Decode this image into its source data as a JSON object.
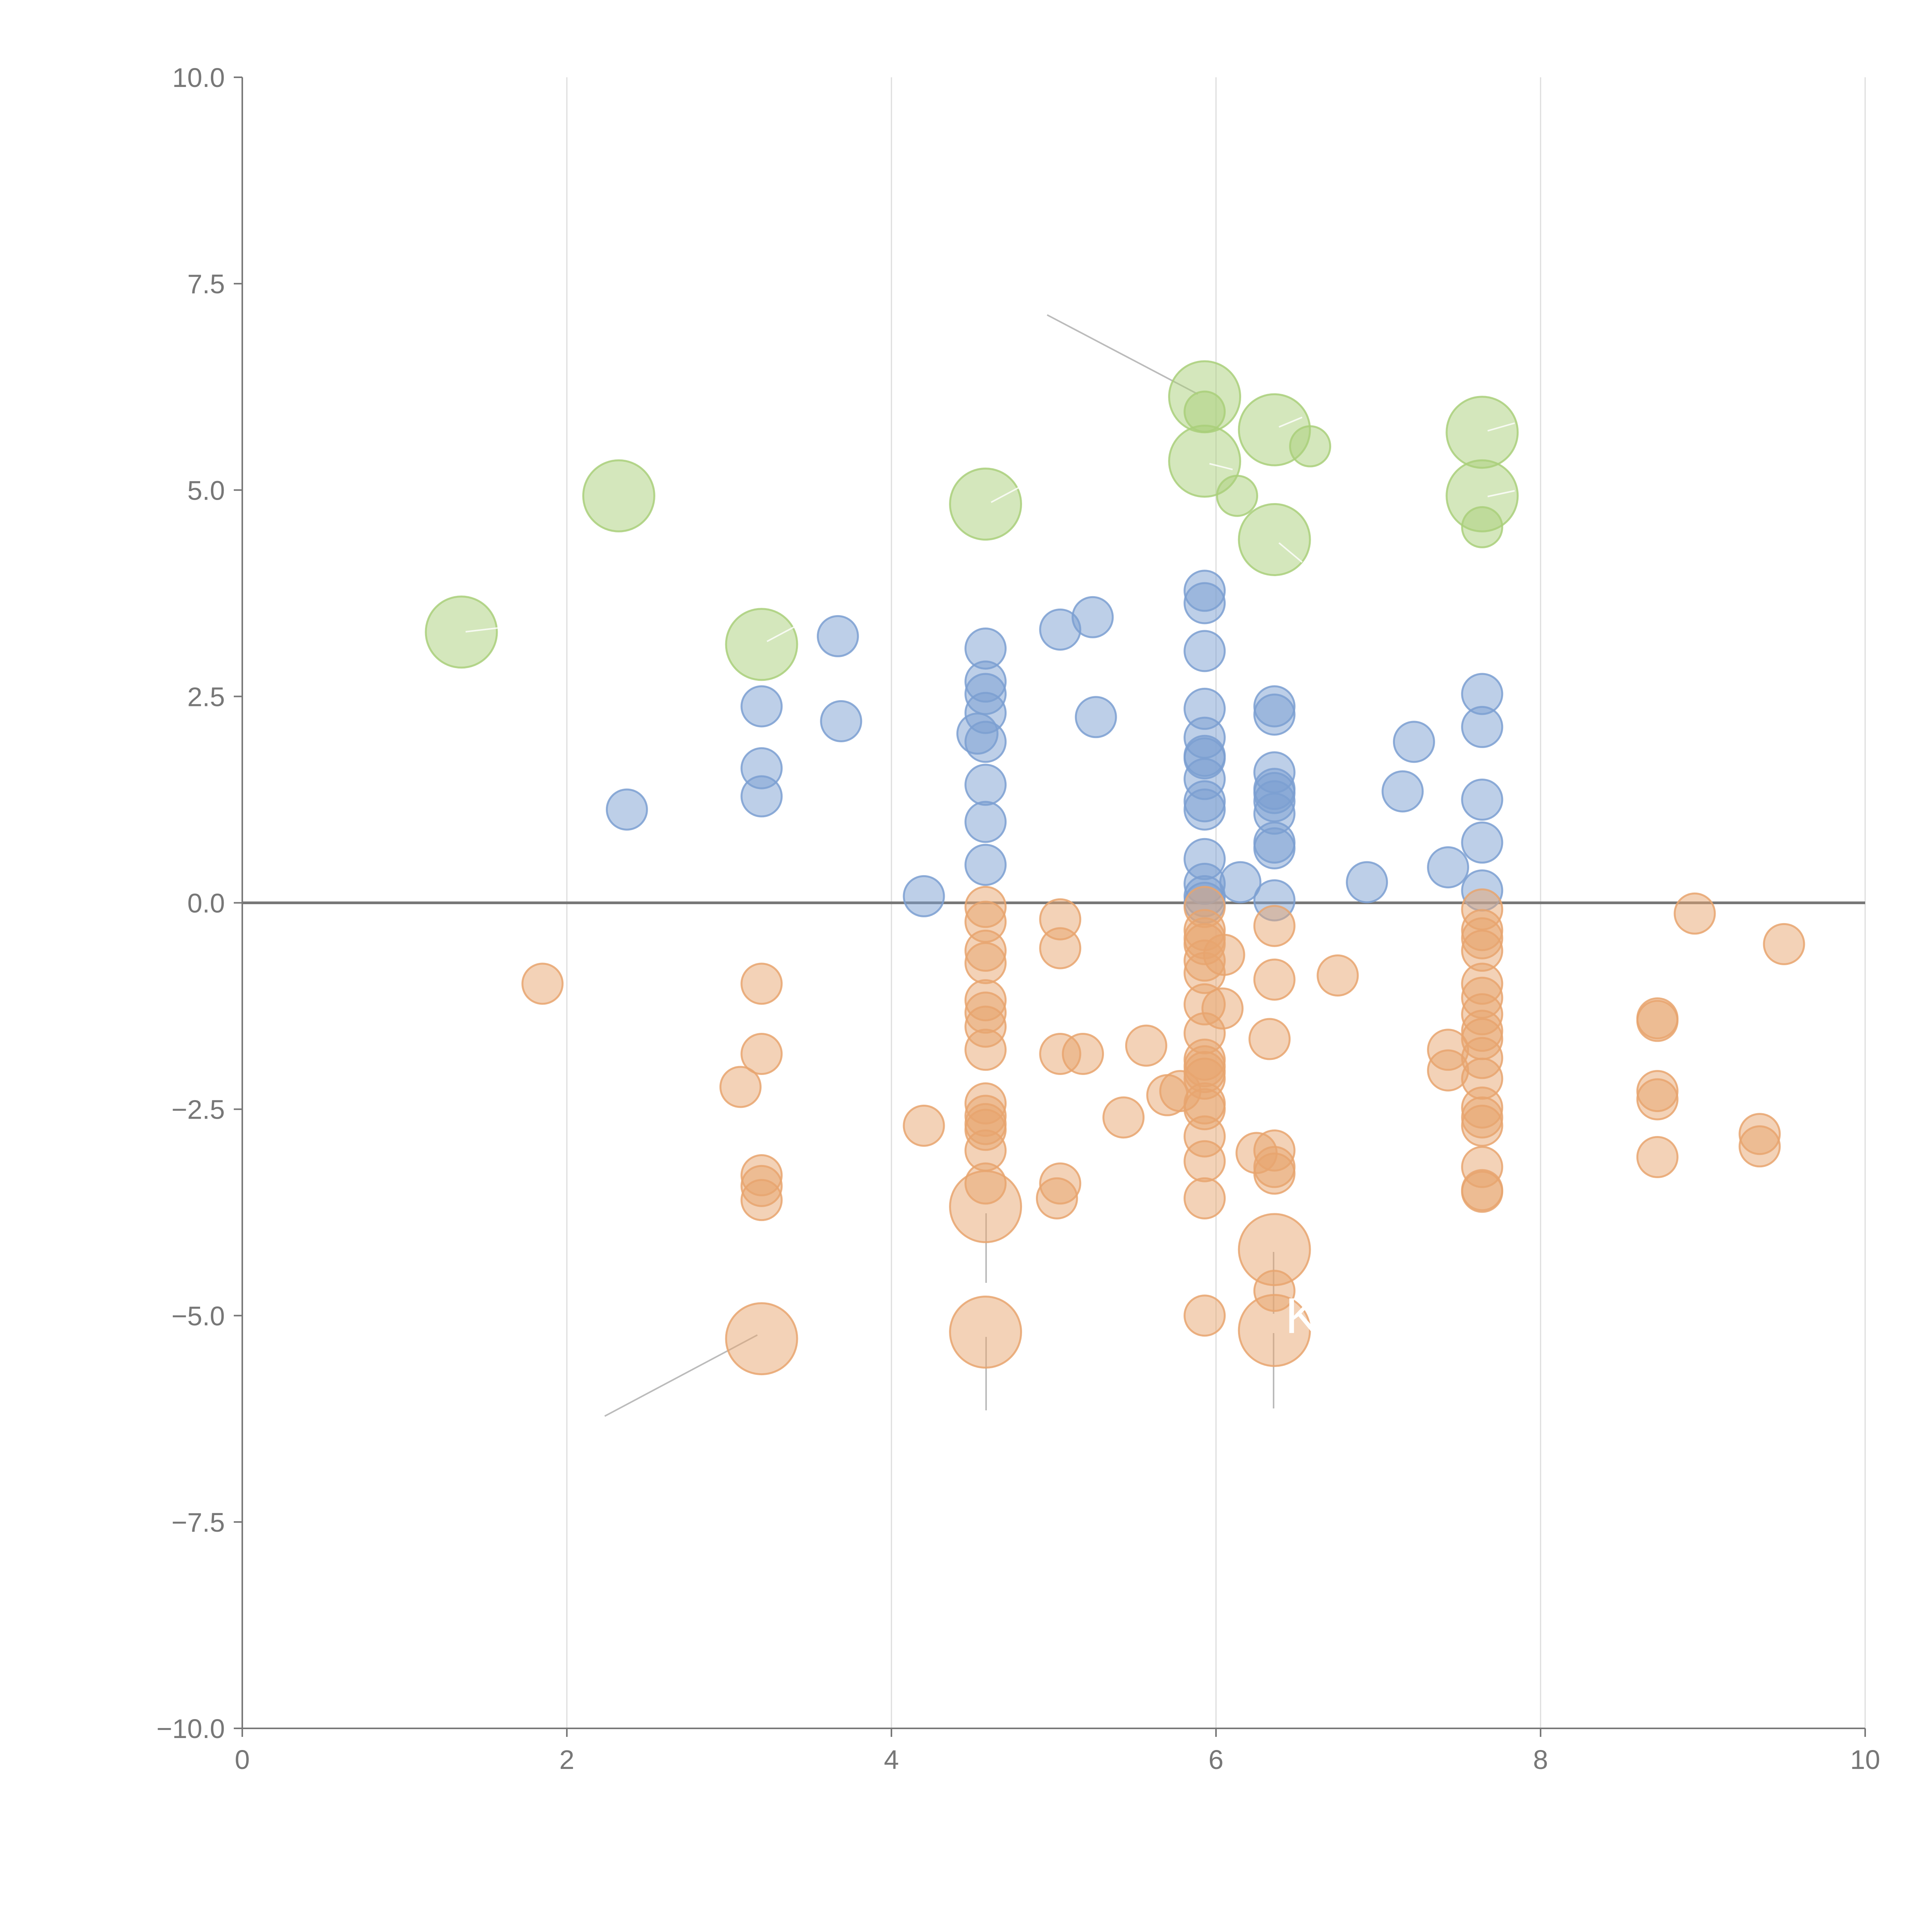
{
  "chart_data": {
    "type": "scatter",
    "title": "",
    "xlabel": "",
    "ylabel": "",
    "xlim": [
      0,
      10
    ],
    "ylim": [
      -10,
      10
    ],
    "xticks": [
      "0",
      "2",
      "4",
      "6",
      "8",
      "10"
    ],
    "yticks": [
      "10.0",
      "7.5",
      "5.0",
      "2.5",
      "0.0",
      "−2.5",
      "−5.0",
      "−7.5",
      "−10.0"
    ],
    "xtick_values": [
      0,
      2,
      4,
      6,
      8,
      10
    ],
    "ytick_values": [
      10,
      7.5,
      5,
      2.5,
      0,
      -2.5,
      -5,
      -7.5,
      -10
    ],
    "grid": "vertical",
    "reference_line_y": 0,
    "colors": {
      "blue": "#7b9fd1",
      "orange": "#e8a56f",
      "green": "#a9cf7a"
    },
    "annotations": [
      {
        "text": "K",
        "x": 6.45,
        "y": -5.0
      }
    ],
    "series": [
      {
        "color": "#7b9fd1",
        "size": "small",
        "points": [
          [
            2.37,
            1.13
          ],
          [
            3.2,
            2.38
          ],
          [
            3.2,
            1.63
          ],
          [
            3.2,
            1.29
          ],
          [
            3.67,
            3.23
          ],
          [
            3.69,
            2.2
          ],
          [
            4.2,
            0.08
          ],
          [
            4.53,
            2.05
          ],
          [
            4.58,
            3.08
          ],
          [
            4.58,
            2.68
          ],
          [
            4.58,
            2.53
          ],
          [
            4.58,
            2.3
          ],
          [
            4.58,
            1.95
          ],
          [
            4.58,
            1.43
          ],
          [
            4.58,
            0.98
          ],
          [
            4.58,
            0.46
          ],
          [
            5.04,
            3.31
          ],
          [
            5.24,
            3.46
          ],
          [
            5.26,
            2.25
          ],
          [
            5.93,
            3.78
          ],
          [
            5.93,
            3.63
          ],
          [
            5.93,
            3.05
          ],
          [
            5.93,
            2.35
          ],
          [
            5.93,
            2.0
          ],
          [
            5.93,
            1.78
          ],
          [
            5.93,
            1.75
          ],
          [
            5.93,
            1.5
          ],
          [
            5.93,
            1.23
          ],
          [
            5.93,
            1.13
          ],
          [
            5.93,
            0.53
          ],
          [
            5.93,
            0.23
          ],
          [
            5.93,
            0.08
          ],
          [
            5.93,
            0.0
          ],
          [
            6.15,
            0.25
          ],
          [
            6.36,
            2.38
          ],
          [
            6.36,
            2.28
          ],
          [
            6.36,
            1.58
          ],
          [
            6.36,
            1.38
          ],
          [
            6.36,
            1.33
          ],
          [
            6.36,
            1.23
          ],
          [
            6.36,
            1.08
          ],
          [
            6.36,
            0.73
          ],
          [
            6.36,
            0.66
          ],
          [
            6.36,
            0.03
          ],
          [
            6.93,
            0.25
          ],
          [
            7.15,
            1.35
          ],
          [
            7.22,
            1.95
          ],
          [
            7.43,
            0.43
          ],
          [
            7.64,
            2.53
          ],
          [
            7.64,
            2.13
          ],
          [
            7.64,
            1.25
          ],
          [
            7.64,
            0.73
          ],
          [
            7.64,
            0.15
          ]
        ]
      },
      {
        "color": "#e8a56f",
        "size": "small",
        "points": [
          [
            1.85,
            -0.98
          ],
          [
            3.07,
            -2.23
          ],
          [
            3.2,
            -0.98
          ],
          [
            3.2,
            -1.83
          ],
          [
            3.2,
            -3.3
          ],
          [
            3.2,
            -3.43
          ],
          [
            3.2,
            -3.6
          ],
          [
            4.2,
            -2.7
          ],
          [
            4.58,
            -0.05
          ],
          [
            4.58,
            -0.23
          ],
          [
            4.58,
            -0.58
          ],
          [
            4.58,
            -0.73
          ],
          [
            4.58,
            -1.18
          ],
          [
            4.58,
            -1.33
          ],
          [
            4.58,
            -1.5
          ],
          [
            4.58,
            -1.78
          ],
          [
            4.58,
            -2.43
          ],
          [
            4.58,
            -2.58
          ],
          [
            4.58,
            -2.68
          ],
          [
            4.58,
            -2.75
          ],
          [
            4.58,
            -3.0
          ],
          [
            4.58,
            -3.4
          ],
          [
            5.04,
            -0.2
          ],
          [
            5.04,
            -0.55
          ],
          [
            5.04,
            -1.83
          ],
          [
            5.18,
            -1.83
          ],
          [
            5.04,
            -3.4
          ],
          [
            5.02,
            -3.58
          ],
          [
            5.43,
            -2.6
          ],
          [
            5.57,
            -1.73
          ],
          [
            5.7,
            -2.33
          ],
          [
            5.78,
            -2.28
          ],
          [
            5.93,
            -0.05
          ],
          [
            5.93,
            -0.33
          ],
          [
            5.93,
            -0.43
          ],
          [
            5.93,
            -0.5
          ],
          [
            5.93,
            -0.7
          ],
          [
            5.93,
            -0.85
          ],
          [
            5.93,
            -1.23
          ],
          [
            5.93,
            -1.58
          ],
          [
            5.93,
            -1.9
          ],
          [
            5.93,
            -1.98
          ],
          [
            5.93,
            -2.05
          ],
          [
            5.93,
            -2.13
          ],
          [
            5.93,
            -2.43
          ],
          [
            5.93,
            -2.5
          ],
          [
            5.93,
            -2.83
          ],
          [
            5.93,
            -3.13
          ],
          [
            5.93,
            -3.58
          ],
          [
            5.93,
            -5.0
          ],
          [
            6.05,
            -0.63
          ],
          [
            6.04,
            -1.28
          ],
          [
            6.25,
            -3.03
          ],
          [
            6.33,
            -1.65
          ],
          [
            6.36,
            -0.28
          ],
          [
            6.36,
            -0.93
          ],
          [
            6.36,
            -3.0
          ],
          [
            6.36,
            -3.2
          ],
          [
            6.36,
            -3.28
          ],
          [
            6.36,
            -4.7
          ],
          [
            6.75,
            -0.88
          ],
          [
            7.43,
            -1.78
          ],
          [
            7.43,
            -2.03
          ],
          [
            7.64,
            -0.08
          ],
          [
            7.64,
            -0.33
          ],
          [
            7.64,
            -0.43
          ],
          [
            7.64,
            -0.58
          ],
          [
            7.64,
            -0.98
          ],
          [
            7.64,
            -1.15
          ],
          [
            7.64,
            -1.35
          ],
          [
            7.64,
            -1.55
          ],
          [
            7.64,
            -1.65
          ],
          [
            7.64,
            -1.88
          ],
          [
            7.64,
            -2.13
          ],
          [
            7.64,
            -2.48
          ],
          [
            7.64,
            -2.6
          ],
          [
            7.64,
            -2.7
          ],
          [
            7.64,
            -3.2
          ],
          [
            7.64,
            -3.48
          ],
          [
            7.64,
            -3.5
          ],
          [
            8.72,
            -1.4
          ],
          [
            8.72,
            -1.43
          ],
          [
            8.72,
            -2.28
          ],
          [
            8.72,
            -2.38
          ],
          [
            8.72,
            -3.08
          ],
          [
            8.95,
            -0.13
          ],
          [
            9.35,
            -2.8
          ],
          [
            9.35,
            -2.95
          ],
          [
            9.5,
            -0.5
          ]
        ]
      },
      {
        "color": "#e8a56f",
        "size": "large",
        "points": [
          [
            3.2,
            -5.28
          ],
          [
            4.58,
            -3.68
          ],
          [
            4.58,
            -5.2
          ],
          [
            6.36,
            -4.2
          ],
          [
            6.36,
            -5.18
          ]
        ]
      },
      {
        "color": "#a9cf7a",
        "size": "large",
        "points": [
          [
            1.35,
            3.28
          ],
          [
            2.32,
            4.93
          ],
          [
            3.2,
            3.13
          ],
          [
            4.58,
            4.83
          ],
          [
            5.93,
            6.13
          ],
          [
            5.93,
            5.35
          ],
          [
            6.36,
            5.73
          ],
          [
            6.36,
            4.4
          ],
          [
            7.64,
            5.7
          ],
          [
            7.64,
            4.93
          ]
        ]
      },
      {
        "color": "#a9cf7a",
        "size": "small",
        "points": [
          [
            5.93,
            5.95
          ],
          [
            6.13,
            4.93
          ],
          [
            6.58,
            5.53
          ],
          [
            7.64,
            4.55
          ]
        ]
      }
    ]
  }
}
